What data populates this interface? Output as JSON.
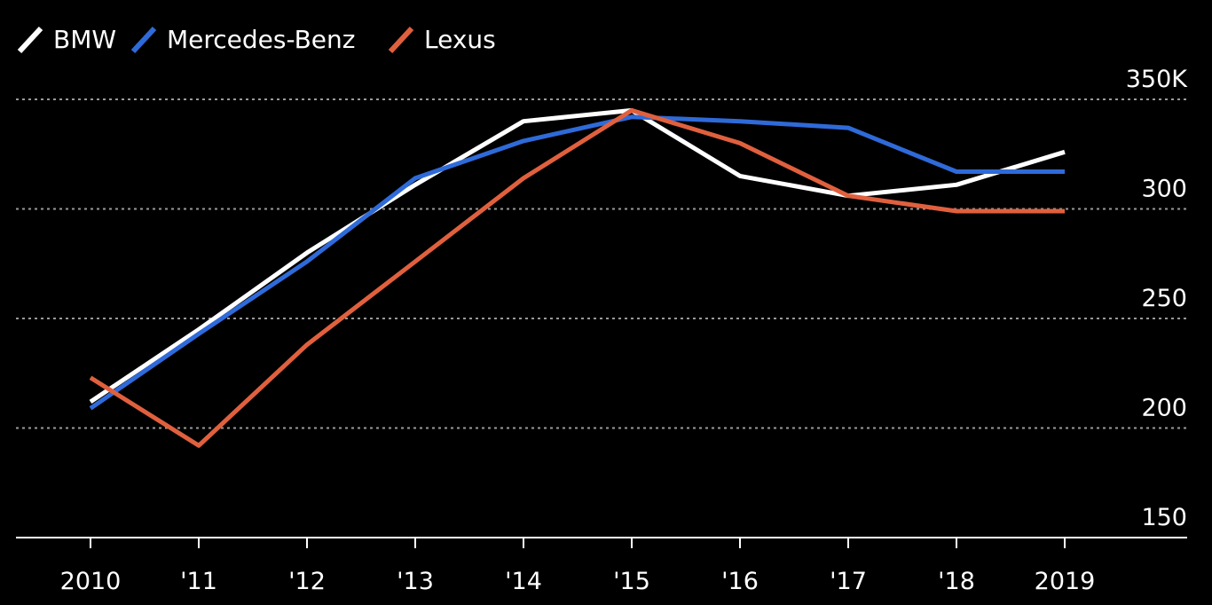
{
  "chart_data": {
    "type": "line",
    "categories": [
      "2010",
      "'11",
      "'12",
      "'13",
      "'14",
      "'15",
      "'16",
      "'17",
      "'18",
      "2019"
    ],
    "series": [
      {
        "name": "BMW",
        "color": "#ffffff",
        "values": [
          212,
          245,
          280,
          311,
          340,
          345,
          315,
          306,
          311,
          326
        ]
      },
      {
        "name": "Mercedes-Benz",
        "color": "#2f6ad9",
        "values": [
          209,
          243,
          276,
          314,
          331,
          342,
          340,
          337,
          317,
          317
        ]
      },
      {
        "name": "Lexus",
        "color": "#e0603e",
        "values": [
          223,
          192,
          238,
          276,
          314,
          345,
          330,
          306,
          299,
          299
        ]
      }
    ],
    "y_ticks": [
      {
        "value": 150,
        "label": "150"
      },
      {
        "value": 200,
        "label": "200"
      },
      {
        "value": 250,
        "label": "250"
      },
      {
        "value": 300,
        "label": "300"
      },
      {
        "value": 350,
        "label": "350K"
      }
    ],
    "ylim": [
      150,
      350
    ],
    "grid": true,
    "legend_position": "top-left",
    "colors": {
      "background": "#000000",
      "gridline": "#9a9a9a",
      "axis": "#ffffff"
    }
  }
}
